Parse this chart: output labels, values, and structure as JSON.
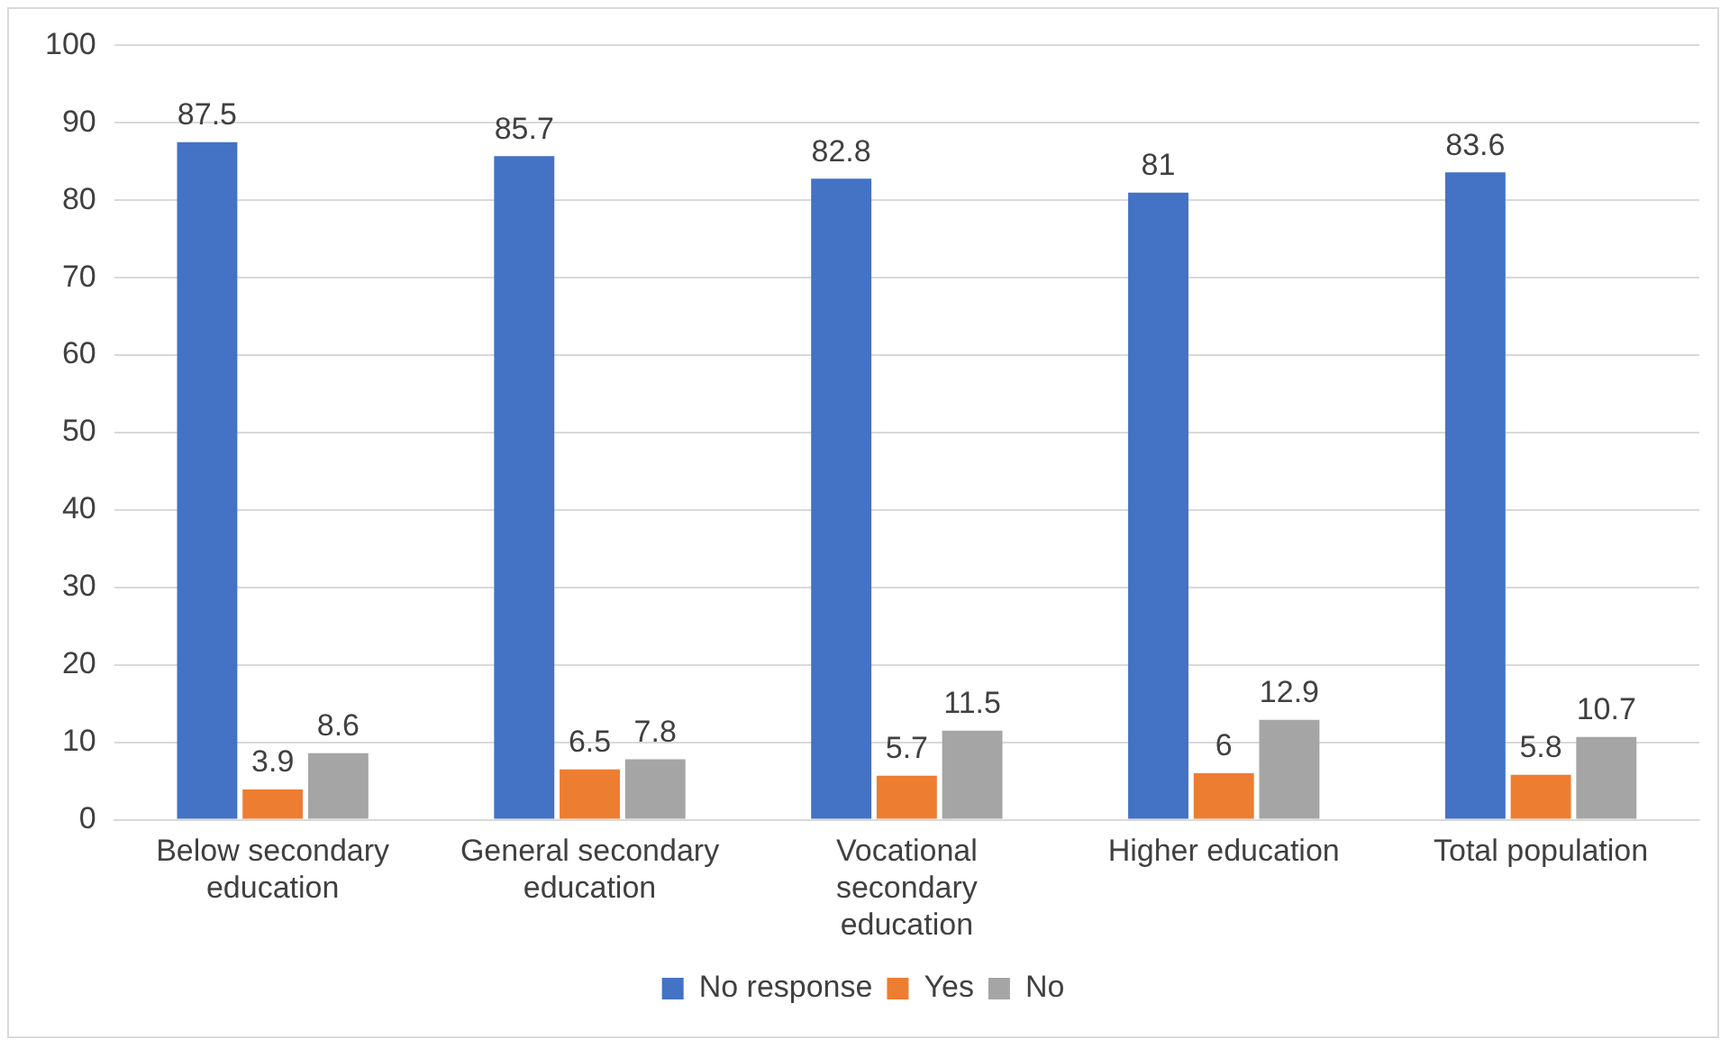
{
  "chart_data": {
    "type": "bar",
    "categories": [
      "Below secondary education",
      "General secondary education",
      "Vocational secondary education",
      "Higher education",
      "Total population"
    ],
    "series": [
      {
        "name": "No response",
        "color": "#4472c4",
        "values": [
          87.5,
          85.7,
          82.8,
          81,
          83.6
        ]
      },
      {
        "name": "Yes",
        "color": "#ed7d31",
        "values": [
          3.9,
          6.5,
          5.7,
          6,
          5.8
        ]
      },
      {
        "name": "No",
        "color": "#a5a5a5",
        "values": [
          8.6,
          7.8,
          11.5,
          12.9,
          10.7
        ]
      }
    ],
    "ylim": [
      0,
      100
    ],
    "yticks": [
      0,
      10,
      20,
      30,
      40,
      50,
      60,
      70,
      80,
      90,
      100
    ],
    "grid": "y",
    "legend": "bottom",
    "data_labels": true
  }
}
